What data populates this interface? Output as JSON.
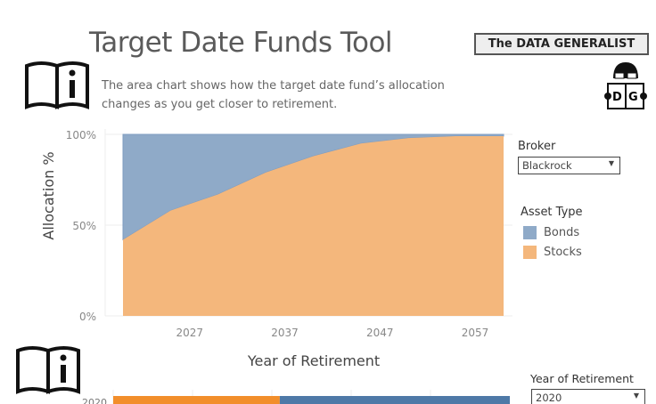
{
  "header": {
    "title": "Target Date Funds Tool",
    "brand": "The DATA GENERALIST",
    "logo_letters": [
      "D",
      "G"
    ],
    "description_line1": "The area chart shows how the target date fund’s allocation",
    "description_line2": "changes as you get closer to retirement."
  },
  "icons": [
    "info-book-icon",
    "data-generalist-logo"
  ],
  "filters": {
    "broker_label": "Broker",
    "broker_value": "Blackrock",
    "year_label": "Year of Retirement",
    "year_value": "2020"
  },
  "legend": {
    "title": "Asset Type",
    "items": [
      {
        "label": "Bonds",
        "color": "#8faac8"
      },
      {
        "label": "Stocks",
        "color": "#f4b77c"
      }
    ]
  },
  "chart_data": [
    {
      "type": "area",
      "stacked": true,
      "xlabel": "Year of Retirement",
      "ylabel": "Allocation %",
      "x": [
        2020,
        2025,
        2030,
        2035,
        2040,
        2045,
        2050,
        2055,
        2060
      ],
      "x_ticks": [
        "2027",
        "2037",
        "2047",
        "2057"
      ],
      "y_ticks": [
        "0%",
        "50%",
        "100%"
      ],
      "ylim": [
        0,
        100
      ],
      "grid": true,
      "series": [
        {
          "name": "Stocks",
          "color": "#f4b77c",
          "values": [
            42,
            58,
            67,
            79,
            88,
            95,
            98,
            99,
            99
          ]
        },
        {
          "name": "Bonds",
          "color": "#8faac8",
          "values": [
            58,
            42,
            33,
            21,
            12,
            5,
            2,
            1,
            1
          ]
        }
      ]
    },
    {
      "type": "bar",
      "orientation": "horizontal",
      "stacked": true,
      "categories": [
        "2020"
      ],
      "series": [
        {
          "name": "Stocks",
          "color": "#f28e2b",
          "values": [
            42
          ]
        },
        {
          "name": "Bonds",
          "color": "#4e79a7",
          "values": [
            58
          ]
        }
      ]
    }
  ]
}
